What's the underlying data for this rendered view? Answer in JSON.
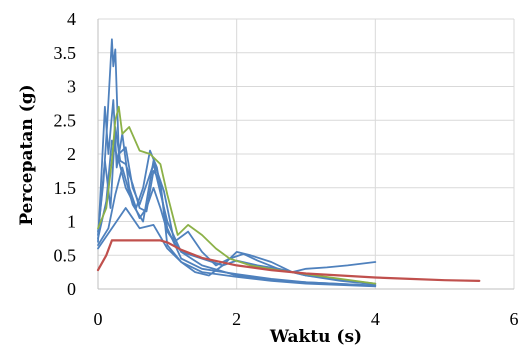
{
  "chart_data": {
    "type": "line",
    "title": "",
    "xlabel": "Waktu (s)",
    "ylabel": "Percepatan (g)",
    "xlim": [
      0,
      6
    ],
    "ylim": [
      0,
      4
    ],
    "x_ticks": [
      "0",
      "2",
      "4",
      "6"
    ],
    "y_ticks": [
      "0",
      "0.5",
      "1",
      "1.5",
      "2",
      "2.5",
      "3",
      "3.5",
      "4"
    ],
    "grid": true,
    "legend": "none",
    "colors": {
      "records": "#4f81bd",
      "target": "#8cb148",
      "design": "#c0504d"
    },
    "series": [
      {
        "role": "records",
        "x": [
          0,
          0.08,
          0.13,
          0.2,
          0.22,
          0.25,
          0.3,
          0.4,
          0.5,
          0.6,
          0.8,
          1.0,
          1.2,
          1.5,
          2.0,
          2.5,
          3.0,
          4.0
        ],
        "y": [
          0.85,
          1.6,
          2.4,
          3.7,
          3.3,
          3.55,
          2.0,
          2.1,
          1.5,
          1.25,
          1.85,
          1.0,
          0.55,
          0.35,
          0.2,
          0.13,
          0.1,
          0.05
        ]
      },
      {
        "role": "records",
        "x": [
          0,
          0.1,
          0.15,
          0.22,
          0.27,
          0.35,
          0.45,
          0.55,
          0.65,
          0.75,
          0.85,
          1.0,
          1.2,
          1.5,
          2.0,
          2.5,
          3.0,
          4.0
        ],
        "y": [
          0.7,
          2.7,
          2.0,
          2.8,
          1.8,
          2.3,
          1.5,
          1.2,
          1.5,
          2.05,
          1.8,
          0.9,
          0.45,
          0.3,
          0.22,
          0.15,
          0.1,
          0.05
        ]
      },
      {
        "role": "records",
        "x": [
          0,
          0.1,
          0.18,
          0.25,
          0.32,
          0.4,
          0.5,
          0.6,
          0.7,
          0.8,
          0.9,
          1.0,
          1.2,
          1.5,
          2.0,
          2.5,
          3.0,
          4.0
        ],
        "y": [
          0.8,
          1.9,
          1.2,
          2.4,
          1.9,
          1.85,
          1.55,
          1.2,
          1.15,
          1.75,
          1.6,
          0.65,
          0.4,
          0.25,
          0.18,
          0.12,
          0.08,
          0.04
        ]
      },
      {
        "role": "records",
        "x": [
          0,
          0.12,
          0.2,
          0.3,
          0.4,
          0.5,
          0.6,
          0.7,
          0.8,
          0.9,
          1.0,
          1.2,
          1.5,
          1.8,
          2.0,
          2.3,
          2.6,
          3.0,
          3.5,
          4.0
        ],
        "y": [
          0.75,
          1.3,
          2.2,
          1.9,
          1.5,
          1.3,
          1.05,
          1.2,
          1.5,
          1.2,
          0.85,
          0.55,
          0.45,
          0.35,
          0.42,
          0.35,
          0.3,
          0.2,
          0.14,
          0.08
        ]
      },
      {
        "role": "records",
        "x": [
          0,
          0.15,
          0.25,
          0.35,
          0.5,
          0.65,
          0.8,
          0.95,
          1.1,
          1.3,
          1.5,
          1.7,
          1.9,
          2.1,
          2.3,
          2.6,
          3.0,
          3.5,
          4.0
        ],
        "y": [
          0.65,
          0.9,
          1.4,
          1.8,
          1.25,
          1.0,
          1.9,
          1.45,
          0.7,
          0.85,
          0.55,
          0.35,
          0.45,
          0.52,
          0.42,
          0.3,
          0.2,
          0.12,
          0.07
        ]
      },
      {
        "role": "records",
        "x": [
          0,
          0.2,
          0.4,
          0.6,
          0.8,
          1.0,
          1.2,
          1.4,
          1.6,
          1.8,
          2.0,
          2.2,
          2.5,
          2.8,
          3.0,
          3.3,
          3.6,
          4.0
        ],
        "y": [
          0.6,
          0.9,
          1.2,
          0.9,
          0.95,
          0.6,
          0.4,
          0.25,
          0.2,
          0.35,
          0.55,
          0.5,
          0.4,
          0.25,
          0.3,
          0.32,
          0.35,
          0.4
        ]
      },
      {
        "role": "target",
        "x": [
          0,
          0.12,
          0.2,
          0.25,
          0.3,
          0.35,
          0.45,
          0.6,
          0.75,
          0.9,
          1.0,
          1.15,
          1.3,
          1.5,
          1.7,
          1.9,
          2.2,
          2.6,
          3.0,
          3.5,
          4.0
        ],
        "y": [
          0.9,
          1.2,
          1.9,
          2.5,
          2.7,
          2.3,
          2.4,
          2.05,
          2.0,
          1.85,
          1.4,
          0.8,
          0.95,
          0.8,
          0.6,
          0.45,
          0.35,
          0.28,
          0.22,
          0.15,
          0.08
        ]
      },
      {
        "role": "design",
        "x": [
          0,
          0.12,
          0.2,
          0.3,
          0.5,
          0.7,
          0.9,
          1.0,
          1.2,
          1.5,
          2.0,
          2.5,
          3.0,
          3.5,
          4.0,
          4.5,
          5.0,
          5.5
        ],
        "y": [
          0.28,
          0.5,
          0.72,
          0.72,
          0.72,
          0.72,
          0.72,
          0.69,
          0.58,
          0.46,
          0.35,
          0.28,
          0.23,
          0.2,
          0.17,
          0.15,
          0.13,
          0.12
        ]
      }
    ]
  }
}
